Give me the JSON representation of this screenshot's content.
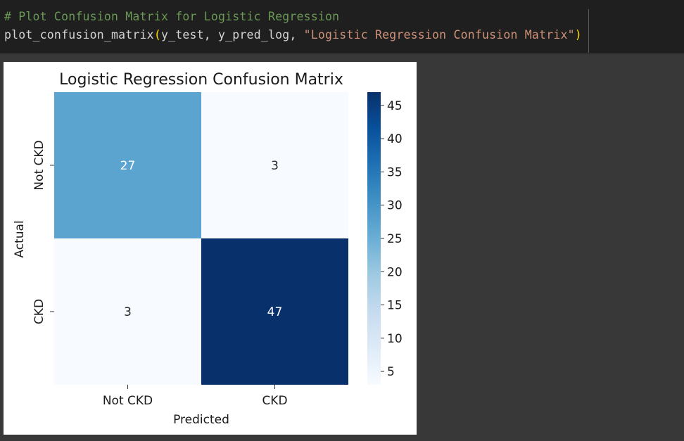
{
  "code": {
    "comment": "# Plot Confusion Matrix for Logistic Regression",
    "func": "plot_confusion_matrix",
    "open_paren": "(",
    "args": "y_test, y_pred_log, ",
    "string_arg": "\"Logistic Regression Confusion Matrix\"",
    "close_paren": ")",
    "colors": {
      "comment": "#6a9955",
      "plain": "#d4d4d4",
      "paren": "#ffd700",
      "string": "#ce9178"
    }
  },
  "chart_data": {
    "type": "heatmap",
    "title": "Logistic Regression Confusion Matrix",
    "xlabel": "Predicted",
    "ylabel": "Actual",
    "x_categories": [
      "Not CKD",
      "CKD"
    ],
    "y_categories": [
      "Not CKD",
      "CKD"
    ],
    "matrix": [
      [
        27,
        3
      ],
      [
        3,
        47
      ]
    ],
    "colormap": "Blues",
    "colorbar": {
      "min": 3,
      "max": 47,
      "ticks": [
        "5",
        "10",
        "15",
        "20",
        "25",
        "30",
        "35",
        "40",
        "45"
      ]
    }
  }
}
